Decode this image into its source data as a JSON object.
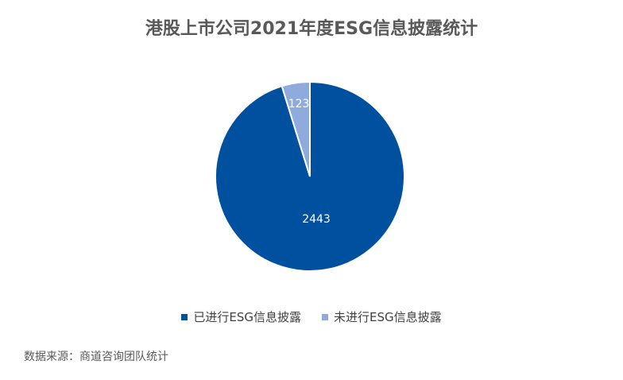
{
  "chart_data": {
    "type": "pie",
    "title": "港股上市公司2021年度ESG信息披露统计",
    "categories": [
      "已进行ESG信息披露",
      "未进行ESG信息披露"
    ],
    "values": [
      2443,
      123
    ],
    "data_labels": [
      "2443",
      "123"
    ],
    "colors": [
      "#0050A0",
      "#8FAADC"
    ],
    "legend_position": "bottom"
  },
  "legend": {
    "items": [
      {
        "label": "已进行ESG信息披露",
        "color": "#0050A0"
      },
      {
        "label": "未进行ESG信息披露",
        "color": "#8FAADC"
      }
    ]
  },
  "source": "数据来源：商道咨询团队统计"
}
